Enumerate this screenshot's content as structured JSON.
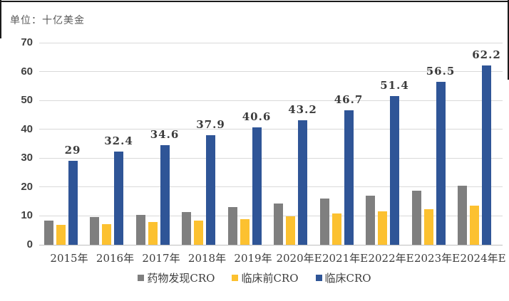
{
  "chart_data": {
    "type": "bar",
    "unit_label": "单位：十亿美金",
    "categories": [
      "2015年",
      "2016年",
      "2017年",
      "2018年",
      "2019年",
      "2020年E",
      "2021年E",
      "2022年E",
      "2023年E",
      "2024年E"
    ],
    "series": [
      {
        "name": "药物发现CRO",
        "color": "#7f7f7f",
        "values": [
          8.5,
          9.5,
          10.3,
          11.4,
          13.0,
          14.2,
          16.0,
          17.1,
          18.8,
          20.4
        ]
      },
      {
        "name": "临床前CRO",
        "color": "#fcc130",
        "values": [
          6.8,
          7.2,
          7.8,
          8.5,
          9.0,
          9.8,
          10.8,
          11.7,
          12.4,
          13.5
        ]
      },
      {
        "name": "临床CRO",
        "color": "#2f5597",
        "values": [
          29,
          32.4,
          34.6,
          37.9,
          40.6,
          43.2,
          46.7,
          51.4,
          56.5,
          62.2
        ],
        "data_labels": [
          "29",
          "32.4",
          "34.6",
          "37.9",
          "40.6",
          "43.2",
          "46.7",
          "51.4",
          "56.5",
          "62.2"
        ]
      }
    ],
    "ylim": [
      0,
      70
    ],
    "y_ticks": [
      0,
      10,
      20,
      30,
      40,
      50,
      60,
      70
    ],
    "grid": true,
    "legend_position": "bottom"
  }
}
